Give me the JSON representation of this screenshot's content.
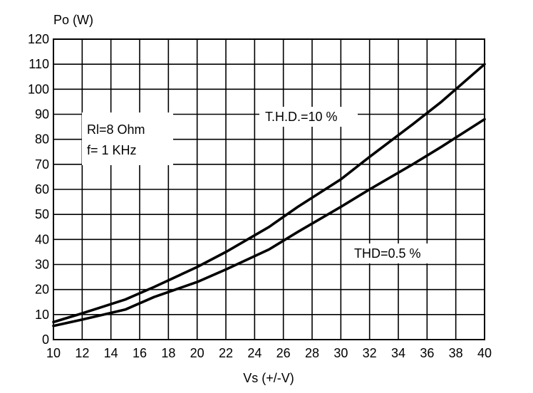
{
  "chart_data": {
    "type": "line",
    "ylabel": "Po (W)",
    "xlabel": "Vs (+/-V)",
    "xlim": [
      10,
      40
    ],
    "ylim": [
      0,
      120
    ],
    "xticks": [
      10,
      12,
      14,
      16,
      18,
      20,
      22,
      24,
      26,
      28,
      30,
      32,
      34,
      36,
      38,
      40
    ],
    "yticks": [
      0,
      10,
      20,
      30,
      40,
      50,
      60,
      70,
      80,
      90,
      100,
      110,
      120
    ],
    "grid": true,
    "legend": "none",
    "annotations": [
      {
        "lines": [
          "Rl=8 Ohm",
          "f= 1 KHz"
        ]
      },
      {
        "text": "T.H.D.=10 %"
      },
      {
        "text": "THD=0.5 %"
      }
    ],
    "series": [
      {
        "name": "T.H.D.=10 %",
        "x": [
          10,
          12,
          15,
          17,
          20,
          22,
          25,
          27,
          30,
          32,
          35,
          37,
          40
        ],
        "y": [
          7,
          10.5,
          16,
          21,
          29,
          35,
          45,
          53,
          64,
          73,
          86,
          95,
          110
        ]
      },
      {
        "name": "THD=0.5 %",
        "x": [
          10,
          12,
          15,
          17,
          20,
          22,
          25,
          27,
          30,
          32,
          35,
          37,
          40
        ],
        "y": [
          5.5,
          8,
          12,
          17,
          23,
          28,
          36,
          43,
          53,
          60,
          70,
          77,
          88
        ]
      }
    ]
  }
}
